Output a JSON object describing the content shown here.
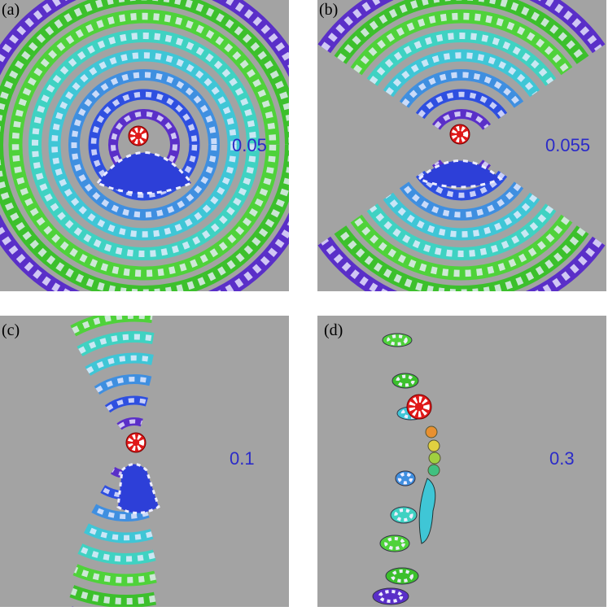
{
  "panels": [
    {
      "label": "(a)",
      "annotation": "0.05"
    },
    {
      "label": "(b)",
      "annotation": "0.055"
    },
    {
      "label": "(c)",
      "annotation": "0.1"
    },
    {
      "label": "(d)",
      "annotation": "0.3"
    }
  ]
}
